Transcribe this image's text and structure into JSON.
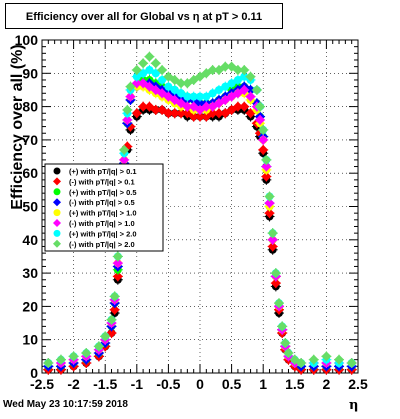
{
  "title": "Efficiency over all for Global vs   η at pT > 0.11",
  "date_stamp": "Wed May 23 10:17:59 2018",
  "chart_data": {
    "type": "scatter",
    "title": "Efficiency over all for Global vs   η at pT > 0.11",
    "xlabel": "η",
    "ylabel": "Efficiency over all (%)",
    "xlim": [
      -2.5,
      2.5
    ],
    "ylim": [
      0,
      100
    ],
    "x_ticks": [
      "-2.5",
      "-2",
      "-1.5",
      "-1",
      "-0.5",
      "0",
      "0.5",
      "1",
      "1.5",
      "2",
      "2.5"
    ],
    "y_ticks": [
      "0",
      "10",
      "20",
      "30",
      "40",
      "50",
      "60",
      "70",
      "80",
      "90",
      "100"
    ],
    "grid": true,
    "legend_position": "left-middle",
    "series": [
      {
        "name": "(+) with pT/|q| > 0.1",
        "color": "#000000",
        "x": [
          -2.4,
          -2.2,
          -2.0,
          -1.8,
          -1.6,
          -1.5,
          -1.4,
          -1.35,
          -1.3,
          -1.25,
          -1.2,
          -1.15,
          -1.1,
          -1.0,
          -0.9,
          -0.8,
          -0.7,
          -0.6,
          -0.5,
          -0.4,
          -0.3,
          -0.2,
          -0.1,
          0.0,
          0.1,
          0.2,
          0.3,
          0.4,
          0.5,
          0.6,
          0.7,
          0.8,
          0.9,
          0.95,
          1.0,
          1.05,
          1.1,
          1.15,
          1.2,
          1.25,
          1.3,
          1.35,
          1.4,
          1.5,
          1.6,
          1.8,
          2.0,
          2.2,
          2.4
        ],
        "y": [
          1,
          1,
          2,
          3,
          5,
          8,
          12,
          18,
          28,
          42,
          57,
          67,
          73,
          77,
          79,
          79,
          79,
          79,
          78,
          78,
          78,
          77,
          77,
          77,
          77,
          77,
          77,
          78,
          79,
          79,
          79,
          77,
          74,
          71,
          66,
          58,
          47,
          37,
          26,
          18,
          12,
          7,
          4,
          2,
          1,
          1,
          1,
          1,
          1
        ]
      },
      {
        "name": "(-) with pT/|q| > 0.1",
        "color": "#ff0000",
        "x": [
          -2.4,
          -2.2,
          -2.0,
          -1.8,
          -1.6,
          -1.5,
          -1.4,
          -1.35,
          -1.3,
          -1.25,
          -1.2,
          -1.15,
          -1.1,
          -1.0,
          -0.9,
          -0.8,
          -0.7,
          -0.6,
          -0.5,
          -0.4,
          -0.3,
          -0.2,
          -0.1,
          0.0,
          0.1,
          0.2,
          0.3,
          0.4,
          0.5,
          0.6,
          0.7,
          0.8,
          0.9,
          0.95,
          1.0,
          1.05,
          1.1,
          1.15,
          1.2,
          1.25,
          1.3,
          1.35,
          1.4,
          1.5,
          1.6,
          1.8,
          2.0,
          2.2,
          2.4
        ],
        "y": [
          1,
          1,
          2,
          3,
          5,
          8,
          12,
          19,
          29,
          44,
          58,
          68,
          74,
          78,
          80,
          80,
          79,
          79,
          78,
          78,
          78,
          78,
          77,
          77,
          77,
          78,
          78,
          78,
          79,
          80,
          80,
          78,
          75,
          72,
          67,
          59,
          48,
          38,
          27,
          19,
          12,
          7,
          4,
          2,
          1,
          1,
          1,
          1,
          1
        ]
      },
      {
        "name": "(+) with pT/|q| > 0.5",
        "color": "#00ff00",
        "x": [
          -2.4,
          -2.2,
          -2.0,
          -1.8,
          -1.6,
          -1.5,
          -1.4,
          -1.35,
          -1.3,
          -1.25,
          -1.2,
          -1.15,
          -1.1,
          -1.0,
          -0.9,
          -0.8,
          -0.7,
          -0.6,
          -0.5,
          -0.4,
          -0.3,
          -0.2,
          -0.1,
          0.0,
          0.1,
          0.2,
          0.3,
          0.4,
          0.5,
          0.6,
          0.7,
          0.8,
          0.9,
          0.95,
          1.0,
          1.05,
          1.1,
          1.15,
          1.2,
          1.25,
          1.3,
          1.35,
          1.4,
          1.5,
          1.6,
          1.8,
          2.0,
          2.2,
          2.4
        ],
        "y": [
          2,
          2,
          3,
          4,
          6,
          9,
          14,
          21,
          31,
          47,
          63,
          75,
          82,
          86,
          88,
          88,
          87,
          86,
          85,
          85,
          84,
          83,
          82,
          81,
          81,
          81,
          82,
          83,
          85,
          86,
          86,
          85,
          81,
          77,
          71,
          62,
          50,
          40,
          29,
          20,
          13,
          8,
          5,
          3,
          2,
          2,
          2,
          2,
          2
        ]
      },
      {
        "name": "(-) with pT/|q| > 0.5",
        "color": "#0000ff",
        "x": [
          -2.4,
          -2.2,
          -2.0,
          -1.8,
          -1.6,
          -1.5,
          -1.4,
          -1.35,
          -1.3,
          -1.25,
          -1.2,
          -1.15,
          -1.1,
          -1.0,
          -0.9,
          -0.8,
          -0.7,
          -0.6,
          -0.5,
          -0.4,
          -0.3,
          -0.2,
          -0.1,
          0.0,
          0.1,
          0.2,
          0.3,
          0.4,
          0.5,
          0.6,
          0.7,
          0.8,
          0.9,
          0.95,
          1.0,
          1.05,
          1.1,
          1.15,
          1.2,
          1.25,
          1.3,
          1.35,
          1.4,
          1.5,
          1.6,
          1.8,
          2.0,
          2.2,
          2.4
        ],
        "y": [
          2,
          2,
          3,
          4,
          6,
          9,
          14,
          21,
          32,
          47,
          63,
          75,
          82,
          86,
          87,
          87,
          86,
          85,
          84,
          84,
          83,
          82,
          82,
          81,
          81,
          81,
          82,
          83,
          84,
          85,
          86,
          85,
          81,
          77,
          71,
          62,
          51,
          40,
          29,
          20,
          13,
          8,
          5,
          3,
          2,
          2,
          2,
          2,
          2
        ]
      },
      {
        "name": "(+) with pT/|q| > 1.0",
        "color": "#ffff00",
        "x": [
          -2.4,
          -2.2,
          -2.0,
          -1.8,
          -1.6,
          -1.5,
          -1.4,
          -1.35,
          -1.3,
          -1.25,
          -1.2,
          -1.15,
          -1.1,
          -1.0,
          -0.9,
          -0.8,
          -0.7,
          -0.6,
          -0.5,
          -0.4,
          -0.3,
          -0.2,
          -0.1,
          0.0,
          0.1,
          0.2,
          0.3,
          0.4,
          0.5,
          0.6,
          0.7,
          0.8,
          0.9,
          0.95,
          1.0,
          1.05,
          1.1,
          1.15,
          1.2,
          1.25,
          1.3,
          1.35,
          1.4,
          1.5,
          1.6,
          1.8,
          2.0,
          2.2,
          2.4
        ],
        "y": [
          3,
          3,
          4,
          5,
          7,
          10,
          15,
          22,
          33,
          48,
          64,
          76,
          83,
          86,
          86,
          85,
          84,
          83,
          82,
          81,
          80,
          80,
          79,
          79,
          79,
          80,
          81,
          82,
          83,
          84,
          84,
          82,
          79,
          75,
          70,
          61,
          50,
          40,
          29,
          20,
          13,
          8,
          5,
          3,
          3,
          3,
          3,
          3,
          3
        ]
      },
      {
        "name": "(-) with pT/|q| > 1.0",
        "color": "#ff00ff",
        "x": [
          -2.4,
          -2.2,
          -2.0,
          -1.8,
          -1.6,
          -1.5,
          -1.4,
          -1.35,
          -1.3,
          -1.25,
          -1.2,
          -1.15,
          -1.1,
          -1.0,
          -0.9,
          -0.8,
          -0.7,
          -0.6,
          -0.5,
          -0.4,
          -0.3,
          -0.2,
          -0.1,
          0.0,
          0.1,
          0.2,
          0.3,
          0.4,
          0.5,
          0.6,
          0.7,
          0.8,
          0.9,
          0.95,
          1.0,
          1.05,
          1.1,
          1.15,
          1.2,
          1.25,
          1.3,
          1.35,
          1.4,
          1.5,
          1.6,
          1.8,
          2.0,
          2.2,
          2.4
        ],
        "y": [
          3,
          3,
          4,
          5,
          7,
          10,
          15,
          22,
          33,
          48,
          64,
          76,
          83,
          87,
          87,
          86,
          85,
          84,
          83,
          82,
          81,
          80,
          80,
          79,
          80,
          80,
          81,
          82,
          83,
          84,
          85,
          83,
          80,
          76,
          70,
          62,
          51,
          40,
          29,
          20,
          13,
          8,
          5,
          3,
          3,
          3,
          3,
          3,
          3
        ]
      },
      {
        "name": "(+) with pT/|q| > 2.0",
        "color": "#00ffff",
        "x": [
          -2.4,
          -2.2,
          -2.0,
          -1.8,
          -1.6,
          -1.5,
          -1.4,
          -1.35,
          -1.3,
          -1.25,
          -1.2,
          -1.15,
          -1.1,
          -1.0,
          -0.9,
          -0.8,
          -0.7,
          -0.6,
          -0.5,
          -0.4,
          -0.3,
          -0.2,
          -0.1,
          0.0,
          0.1,
          0.2,
          0.3,
          0.4,
          0.5,
          0.6,
          0.7,
          0.8,
          0.9,
          0.95,
          1.0,
          1.05,
          1.1,
          1.15,
          1.2,
          1.25,
          1.3,
          1.35,
          1.4,
          1.5,
          1.6,
          1.8,
          2.0,
          2.2,
          2.4
        ],
        "y": [
          3,
          4,
          5,
          6,
          8,
          11,
          16,
          23,
          35,
          50,
          66,
          78,
          85,
          89,
          90,
          91,
          90,
          88,
          86,
          85,
          84,
          83,
          83,
          83,
          83,
          84,
          85,
          86,
          87,
          88,
          89,
          88,
          85,
          80,
          73,
          64,
          53,
          42,
          30,
          21,
          14,
          9,
          6,
          4,
          3,
          3,
          4,
          3,
          3
        ]
      },
      {
        "name": "(-) with pT/|q| > 2.0",
        "color": "#66dd66",
        "x": [
          -2.4,
          -2.2,
          -2.0,
          -1.8,
          -1.6,
          -1.5,
          -1.4,
          -1.35,
          -1.3,
          -1.25,
          -1.2,
          -1.15,
          -1.1,
          -1.0,
          -0.9,
          -0.8,
          -0.7,
          -0.6,
          -0.5,
          -0.4,
          -0.3,
          -0.2,
          -0.1,
          0.0,
          0.1,
          0.2,
          0.3,
          0.4,
          0.5,
          0.6,
          0.7,
          0.8,
          0.9,
          0.95,
          1.0,
          1.05,
          1.1,
          1.15,
          1.2,
          1.25,
          1.3,
          1.35,
          1.4,
          1.5,
          1.6,
          1.8,
          2.0,
          2.2,
          2.4
        ],
        "y": [
          3,
          4,
          5,
          6,
          8,
          11,
          16,
          23,
          35,
          51,
          67,
          79,
          86,
          91,
          93,
          95,
          93,
          91,
          89,
          88,
          87,
          87,
          88,
          89,
          90,
          91,
          91,
          92,
          92,
          91,
          91,
          89,
          85,
          80,
          73,
          64,
          53,
          42,
          30,
          21,
          14,
          9,
          6,
          4,
          3,
          4,
          5,
          4,
          3
        ]
      }
    ]
  }
}
